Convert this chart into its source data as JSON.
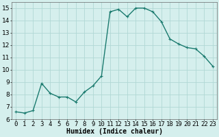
{
  "x": [
    0,
    1,
    2,
    3,
    4,
    5,
    6,
    7,
    8,
    9,
    10,
    11,
    12,
    13,
    14,
    15,
    16,
    17,
    18,
    19,
    20,
    21,
    22,
    23
  ],
  "y": [
    6.6,
    6.5,
    6.7,
    8.9,
    8.1,
    7.8,
    7.8,
    7.4,
    8.2,
    8.7,
    9.5,
    14.7,
    14.9,
    14.3,
    15.0,
    15.0,
    14.7,
    13.9,
    12.5,
    12.1,
    11.8,
    11.7,
    11.1,
    10.3
  ],
  "line_color": "#1a7a6e",
  "marker": "+",
  "marker_size": 3,
  "bg_color": "#d5efed",
  "grid_color": "#b0d8d5",
  "xlabel": "Humidex (Indice chaleur)",
  "ylim": [
    6,
    15.5
  ],
  "xlim": [
    -0.5,
    23.5
  ],
  "yticks": [
    6,
    7,
    8,
    9,
    10,
    11,
    12,
    13,
    14,
    15
  ],
  "xticks": [
    0,
    1,
    2,
    3,
    4,
    5,
    6,
    7,
    8,
    9,
    10,
    11,
    12,
    13,
    14,
    15,
    16,
    17,
    18,
    19,
    20,
    21,
    22,
    23
  ],
  "xlabel_fontsize": 7,
  "tick_fontsize": 6.5,
  "linewidth": 1.0,
  "spine_color": "#666666"
}
